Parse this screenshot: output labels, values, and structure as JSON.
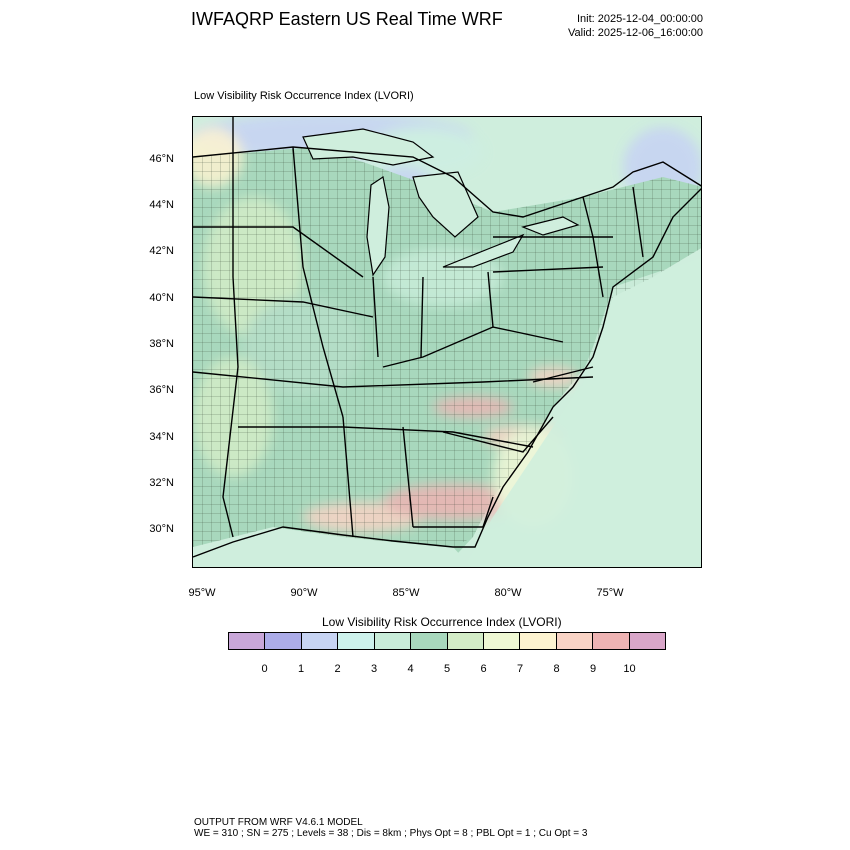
{
  "header": {
    "title": "IWFAQRP Eastern US Real Time WRF",
    "init": "Init: 2025-12-04_00:00:00",
    "valid": "Valid: 2025-12-06_16:00:00"
  },
  "map": {
    "label": "Low Visibility Risk Occurrence Index   (LVORI)",
    "lat_ticks": [
      "46°N",
      "44°N",
      "42°N",
      "40°N",
      "38°N",
      "36°N",
      "34°N",
      "32°N",
      "30°N"
    ],
    "lon_ticks": [
      "95°W",
      "90°W",
      "85°W",
      "80°W",
      "75°W"
    ]
  },
  "colorbar": {
    "title": "Low Visibility Risk Occurrence Index  (LVORI)",
    "colors": [
      "#c9a7d9",
      "#acace9",
      "#c7d4f3",
      "#cdf2ec",
      "#c8ecd9",
      "#a8d8bd",
      "#d3ecc7",
      "#eff8d4",
      "#fdf3d0",
      "#f9d3c5",
      "#eeb3b3",
      "#d9a6c9"
    ],
    "labels": [
      "0",
      "1",
      "2",
      "3",
      "4",
      "5",
      "6",
      "7",
      "8",
      "9",
      "10"
    ]
  },
  "footer": {
    "line1": "OUTPUT FROM WRF V4.6.1 MODEL",
    "line2": "WE = 310 ; SN = 275 ; Levels = 38 ; Dis = 8km ; Phys Opt = 8 ; PBL Opt = 1 ; Cu Opt = 3"
  }
}
